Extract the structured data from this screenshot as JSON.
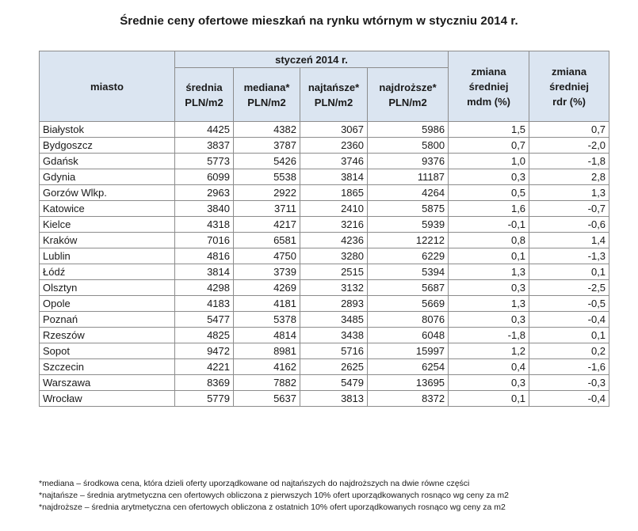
{
  "title": "Średnie ceny ofertowe mieszkań na rynku wtórnym w styczniu 2014 r.",
  "header": {
    "city": "miasto",
    "month_group": "styczeń 2014 r.",
    "avg": [
      "średnia",
      "PLN/m2"
    ],
    "median": [
      "mediana*",
      "PLN/m2"
    ],
    "cheapest": [
      "najtańsze*",
      "PLN/m2"
    ],
    "most_expensive": [
      "najdroższe*",
      "PLN/m2"
    ],
    "change_mdm": [
      "zmiana",
      "średniej",
      "mdm (%)"
    ],
    "change_rdr": [
      "zmiana",
      "średniej",
      "rdr (%)"
    ]
  },
  "rows": [
    {
      "city": "Białystok",
      "avg": "4425",
      "median": "4382",
      "cheapest": "3067",
      "most_expensive": "5986",
      "mdm": "1,5",
      "rdr": "0,7"
    },
    {
      "city": "Bydgoszcz",
      "avg": "3837",
      "median": "3787",
      "cheapest": "2360",
      "most_expensive": "5800",
      "mdm": "0,7",
      "rdr": "-2,0"
    },
    {
      "city": "Gdańsk",
      "avg": "5773",
      "median": "5426",
      "cheapest": "3746",
      "most_expensive": "9376",
      "mdm": "1,0",
      "rdr": "-1,8"
    },
    {
      "city": "Gdynia",
      "avg": "6099",
      "median": "5538",
      "cheapest": "3814",
      "most_expensive": "11187",
      "mdm": "0,3",
      "rdr": "2,8"
    },
    {
      "city": "Gorzów Wlkp.",
      "avg": "2963",
      "median": "2922",
      "cheapest": "1865",
      "most_expensive": "4264",
      "mdm": "0,5",
      "rdr": "1,3"
    },
    {
      "city": "Katowice",
      "avg": "3840",
      "median": "3711",
      "cheapest": "2410",
      "most_expensive": "5875",
      "mdm": "1,6",
      "rdr": "-0,7"
    },
    {
      "city": "Kielce",
      "avg": "4318",
      "median": "4217",
      "cheapest": "3216",
      "most_expensive": "5939",
      "mdm": "-0,1",
      "rdr": "-0,6"
    },
    {
      "city": "Kraków",
      "avg": "7016",
      "median": "6581",
      "cheapest": "4236",
      "most_expensive": "12212",
      "mdm": "0,8",
      "rdr": "1,4"
    },
    {
      "city": "Lublin",
      "avg": "4816",
      "median": "4750",
      "cheapest": "3280",
      "most_expensive": "6229",
      "mdm": "0,1",
      "rdr": "-1,3"
    },
    {
      "city": "Łódź",
      "avg": "3814",
      "median": "3739",
      "cheapest": "2515",
      "most_expensive": "5394",
      "mdm": "1,3",
      "rdr": "0,1"
    },
    {
      "city": "Olsztyn",
      "avg": "4298",
      "median": "4269",
      "cheapest": "3132",
      "most_expensive": "5687",
      "mdm": "0,3",
      "rdr": "-2,5"
    },
    {
      "city": "Opole",
      "avg": "4183",
      "median": "4181",
      "cheapest": "2893",
      "most_expensive": "5669",
      "mdm": "1,3",
      "rdr": "-0,5"
    },
    {
      "city": "Poznań",
      "avg": "5477",
      "median": "5378",
      "cheapest": "3485",
      "most_expensive": "8076",
      "mdm": "0,3",
      "rdr": "-0,4"
    },
    {
      "city": "Rzeszów",
      "avg": "4825",
      "median": "4814",
      "cheapest": "3438",
      "most_expensive": "6048",
      "mdm": "-1,8",
      "rdr": "0,1"
    },
    {
      "city": "Sopot",
      "avg": "9472",
      "median": "8981",
      "cheapest": "5716",
      "most_expensive": "15997",
      "mdm": "1,2",
      "rdr": "0,2"
    },
    {
      "city": "Szczecin",
      "avg": "4221",
      "median": "4162",
      "cheapest": "2625",
      "most_expensive": "6254",
      "mdm": "0,4",
      "rdr": "-1,6"
    },
    {
      "city": "Warszawa",
      "avg": "8369",
      "median": "7882",
      "cheapest": "5479",
      "most_expensive": "13695",
      "mdm": "0,3",
      "rdr": "-0,3"
    },
    {
      "city": "Wrocław",
      "avg": "5779",
      "median": "5637",
      "cheapest": "3813",
      "most_expensive": "8372",
      "mdm": "0,1",
      "rdr": "-0,4"
    }
  ],
  "notes": [
    "*mediana – środkowa cena, która dzieli oferty uporządkowane od najtańszych do najdroższych na dwie równe części",
    "*najtańsze – średnia arytmetyczna cen ofertowych obliczona z pierwszych 10% ofert uporządkowanych rosnąco wg ceny za m2",
    "*najdroższe – średnia arytmetyczna cen ofertowych obliczona z ostatnich 10% ofert uporządkowanych rosnąco wg ceny za m2"
  ]
}
